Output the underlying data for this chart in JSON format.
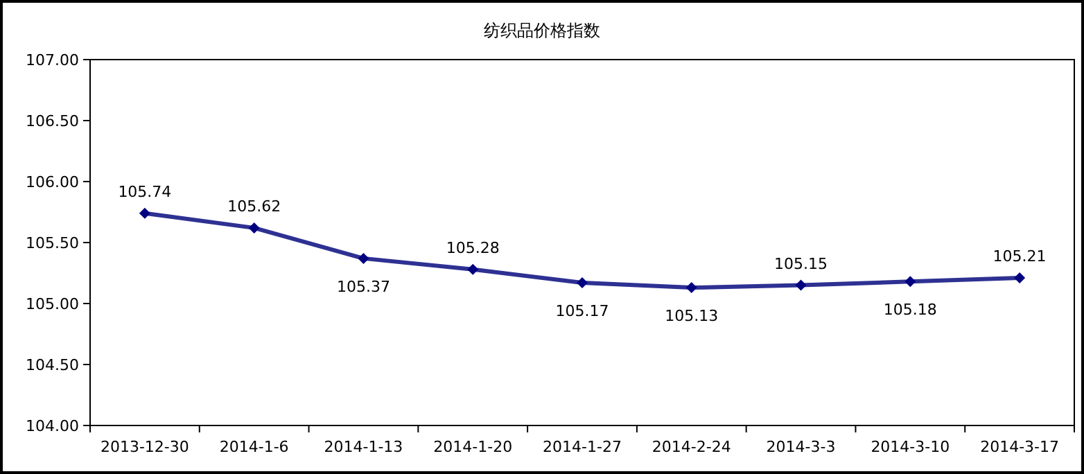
{
  "chart_data": {
    "type": "line",
    "title": "纺织品价格指数",
    "categories": [
      "2013-12-30",
      "2014-1-6",
      "2014-1-13",
      "2014-1-20",
      "2014-1-27",
      "2014-2-24",
      "2014-3-3",
      "2014-3-10",
      "2014-3-17"
    ],
    "series": [
      {
        "color": "#2e3192",
        "values": [
          105.74,
          105.62,
          105.37,
          105.28,
          105.17,
          105.13,
          105.15,
          105.18,
          105.21
        ]
      }
    ],
    "ylim": [
      104,
      107
    ],
    "yticks": [
      {
        "value": 104,
        "label": "104.00"
      },
      {
        "value": 104.5,
        "label": "104.50"
      },
      {
        "value": 105,
        "label": "105.00"
      },
      {
        "value": 105.5,
        "label": "105.50"
      },
      {
        "value": 106,
        "label": "106.00"
      },
      {
        "value": 106.5,
        "label": "106.50"
      },
      {
        "value": 107,
        "label": "107.00"
      }
    ],
    "marker": "diamond",
    "line_style": "solid",
    "grid": false,
    "data_labels": true
  }
}
